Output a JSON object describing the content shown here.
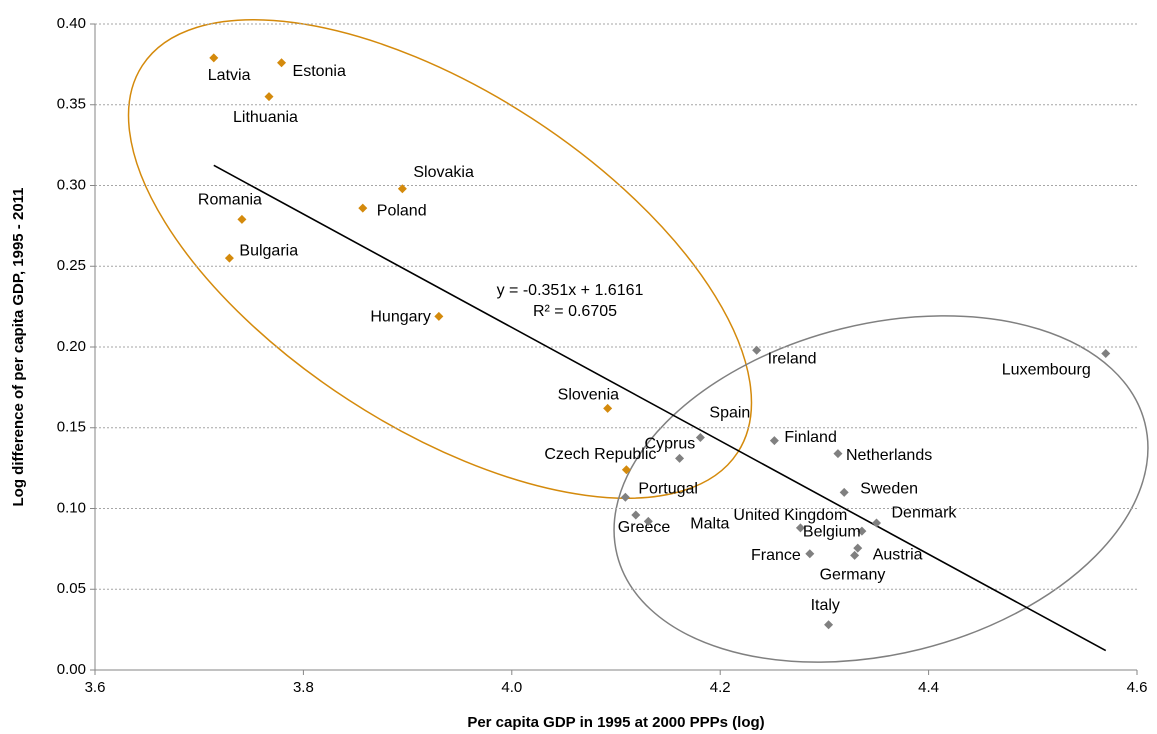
{
  "chart_data": {
    "type": "scatter",
    "xlabel": "Per capita GDP in 1995 at 2000 PPPs (log)",
    "ylabel": "Log difference of per capita GDP, 1995 - 2011",
    "xlim": [
      3.6,
      4.6
    ],
    "xticks": [
      3.6,
      3.8,
      {
        "value": 4.0,
        "label": "4.0"
      },
      4.2,
      4.4,
      4.6
    ],
    "ylim": [
      0,
      0.4
    ],
    "yticks": [
      {
        "value": 0,
        "label": "0.00"
      },
      {
        "value": 0.05,
        "label": "0.05"
      },
      {
        "value": 0.1,
        "label": "0.10"
      },
      {
        "value": 0.15,
        "label": "0.15"
      },
      {
        "value": 0.2,
        "label": "0.20"
      },
      {
        "value": 0.25,
        "label": "0.25"
      },
      {
        "value": 0.3,
        "label": "0.30"
      },
      {
        "value": 0.35,
        "label": "0.35"
      },
      {
        "value": 0.4,
        "label": "0.40"
      }
    ],
    "grid": true,
    "series": [
      {
        "color": "#d48a0c",
        "labels": [
          "Latvia",
          "Estonia",
          "Lithuania",
          "Slovakia",
          "Poland",
          "Romania",
          "Bulgaria",
          "Hungary",
          "Slovenia",
          "Czech Republic"
        ],
        "x": [
          3.714,
          3.779,
          3.767,
          3.895,
          3.857,
          3.741,
          3.729,
          3.93,
          4.092,
          4.11
        ],
        "values": [
          0.379,
          0.376,
          0.355,
          0.298,
          0.286,
          0.279,
          0.255,
          0.219,
          0.162,
          0.124
        ]
      },
      {
        "color": "#808080",
        "labels": [
          "Portugal",
          "Greece",
          "Malta",
          "Cyprus",
          "Spain",
          "Ireland",
          "Finland",
          "Netherlands",
          "Sweden",
          "Denmark",
          "United Kingdom",
          "Belgium",
          "Austria",
          "Germany",
          "France",
          "Italy",
          "Luxembourg"
        ],
        "x": [
          4.109,
          4.119,
          4.131,
          4.161,
          4.181,
          4.235,
          4.252,
          4.313,
          4.319,
          4.35,
          4.277,
          4.336,
          4.332,
          4.329,
          4.286,
          4.304,
          4.57
        ],
        "values": [
          0.107,
          0.096,
          0.092,
          0.131,
          0.144,
          0.198,
          0.142,
          0.134,
          0.11,
          0.091,
          0.088,
          0.086,
          0.0755,
          0.071,
          0.072,
          0.028,
          0.196
        ]
      }
    ],
    "trendline": {
      "equation": "y = -0.351x + 1.6161",
      "r2_label": "R² = 0.6705",
      "slope": -0.351,
      "intercept": 1.6161,
      "color": "#000000"
    }
  }
}
